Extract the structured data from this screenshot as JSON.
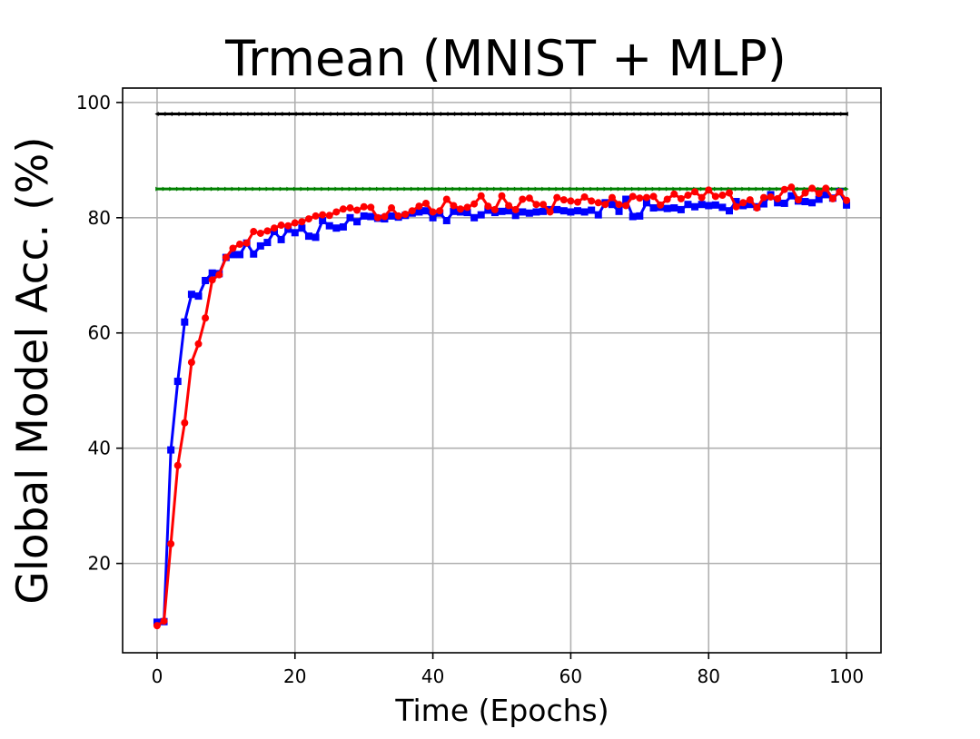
{
  "chart_data": {
    "type": "line",
    "title": "Trmean (MNIST + MLP)",
    "xlabel": "Time (Epochs)",
    "ylabel": "Global Model Acc. (%)",
    "xlim": [
      -5,
      105
    ],
    "ylim": [
      4.5,
      102.5
    ],
    "xticks": [
      0,
      20,
      40,
      60,
      80,
      100
    ],
    "yticks": [
      20,
      40,
      60,
      80,
      100
    ],
    "xtick_labels": [
      "0",
      "20",
      "40",
      "60",
      "80",
      "100"
    ],
    "ytick_labels": [
      "20",
      "40",
      "60",
      "80",
      "100"
    ],
    "grid": true,
    "legend": "none",
    "series": [
      {
        "color": "#000000",
        "marker": "triangle-left",
        "x_start": 0,
        "x_step": 1,
        "values": [
          98,
          98,
          98,
          98,
          98,
          98,
          98,
          98,
          98,
          98,
          98,
          98,
          98,
          98,
          98,
          98,
          98,
          98,
          98,
          98,
          98,
          98,
          98,
          98,
          98,
          98,
          98,
          98,
          98,
          98,
          98,
          98,
          98,
          98,
          98,
          98,
          98,
          98,
          98,
          98,
          98,
          98,
          98,
          98,
          98,
          98,
          98,
          98,
          98,
          98,
          98,
          98,
          98,
          98,
          98,
          98,
          98,
          98,
          98,
          98,
          98,
          98,
          98,
          98,
          98,
          98,
          98,
          98,
          98,
          98,
          98,
          98,
          98,
          98,
          98,
          98,
          98,
          98,
          98,
          98,
          98,
          98,
          98,
          98,
          98,
          98,
          98,
          98,
          98,
          98,
          98,
          98,
          98,
          98,
          98,
          98,
          98,
          98,
          98,
          98,
          98
        ]
      },
      {
        "color": "#008000",
        "marker": "triangle-right",
        "x_start": 0,
        "x_step": 1,
        "values": [
          85,
          85,
          85,
          85,
          85,
          85,
          85,
          85,
          85,
          85,
          85,
          85,
          85,
          85,
          85,
          85,
          85,
          85,
          85,
          85,
          85,
          85,
          85,
          85,
          85,
          85,
          85,
          85,
          85,
          85,
          85,
          85,
          85,
          85,
          85,
          85,
          85,
          85,
          85,
          85,
          85,
          85,
          85,
          85,
          85,
          85,
          85,
          85,
          85,
          85,
          85,
          85,
          85,
          85,
          85,
          85,
          85,
          85,
          85,
          85,
          85,
          85,
          85,
          85,
          85,
          85,
          85,
          85,
          85,
          85,
          85,
          85,
          85,
          85,
          85,
          85,
          85,
          85,
          85,
          85,
          85,
          85,
          85,
          85,
          85,
          85,
          85,
          85,
          85,
          85,
          85,
          85,
          85,
          85,
          85,
          85,
          85,
          85,
          85,
          85,
          85
        ]
      },
      {
        "color": "#0000ff",
        "marker": "square",
        "x_start": 0,
        "x_step": 1,
        "values": [
          9.8,
          9.9,
          39.7,
          51.6,
          61.9,
          66.7,
          66.4,
          69.1,
          70.4,
          70.3,
          73.1,
          73.6,
          73.6,
          75.6,
          73.7,
          75.1,
          75.7,
          77.6,
          76.2,
          78.0,
          77.4,
          78.2,
          76.8,
          76.6,
          79.5,
          78.6,
          78.2,
          78.4,
          80.0,
          79.3,
          80.3,
          80.2,
          79.9,
          79.8,
          80.3,
          80.1,
          80.4,
          80.8,
          81.0,
          81.2,
          80.0,
          80.8,
          79.5,
          81.1,
          81.0,
          80.9,
          80.0,
          80.5,
          81.3,
          80.9,
          81.1,
          81.2,
          80.4,
          81.0,
          80.8,
          81.0,
          81.1,
          81.4,
          81.4,
          81.2,
          81.0,
          81.2,
          81.0,
          81.3,
          80.5,
          82.6,
          82.3,
          81.1,
          83.2,
          80.2,
          80.3,
          82.6,
          81.7,
          81.8,
          81.6,
          81.7,
          81.4,
          82.3,
          81.9,
          82.3,
          82.1,
          82.2,
          81.8,
          81.2,
          82.8,
          82.1,
          82.3,
          81.9,
          82.4,
          84.0,
          82.6,
          82.5,
          83.8,
          82.9,
          82.8,
          82.6,
          83.2,
          84.0,
          83.4,
          84.5,
          82.2
        ]
      },
      {
        "color": "#ff0000",
        "marker": "circle",
        "x_start": 0,
        "x_step": 1,
        "values": [
          9.2,
          10.0,
          23.4,
          37.0,
          44.4,
          54.9,
          58.1,
          62.6,
          69.2,
          70.1,
          73.1,
          74.7,
          75.4,
          75.6,
          77.6,
          77.3,
          77.7,
          78.2,
          78.7,
          78.6,
          79.1,
          79.3,
          79.8,
          80.3,
          80.5,
          80.4,
          81.0,
          81.5,
          81.7,
          81.3,
          81.9,
          81.8,
          80.0,
          80.2,
          81.7,
          80.3,
          80.6,
          81.2,
          82.0,
          82.5,
          81.0,
          81.2,
          83.2,
          82.1,
          81.5,
          81.8,
          82.4,
          83.8,
          82.0,
          81.4,
          83.8,
          82.1,
          81.4,
          83.2,
          83.4,
          82.3,
          82.3,
          81.0,
          83.5,
          83.1,
          82.9,
          82.7,
          83.6,
          82.9,
          82.6,
          82.3,
          83.5,
          82.3,
          82.1,
          83.7,
          83.4,
          83.5,
          83.7,
          82.2,
          83.2,
          84.1,
          83.3,
          83.9,
          84.5,
          83.5,
          84.8,
          83.7,
          83.9,
          84.3,
          81.9,
          82.6,
          83.1,
          81.7,
          83.5,
          83.6,
          83.3,
          84.9,
          85.3,
          83.1,
          84.3,
          85.1,
          84.2,
          85.1,
          83.3,
          84.5,
          83.0
        ]
      }
    ]
  }
}
